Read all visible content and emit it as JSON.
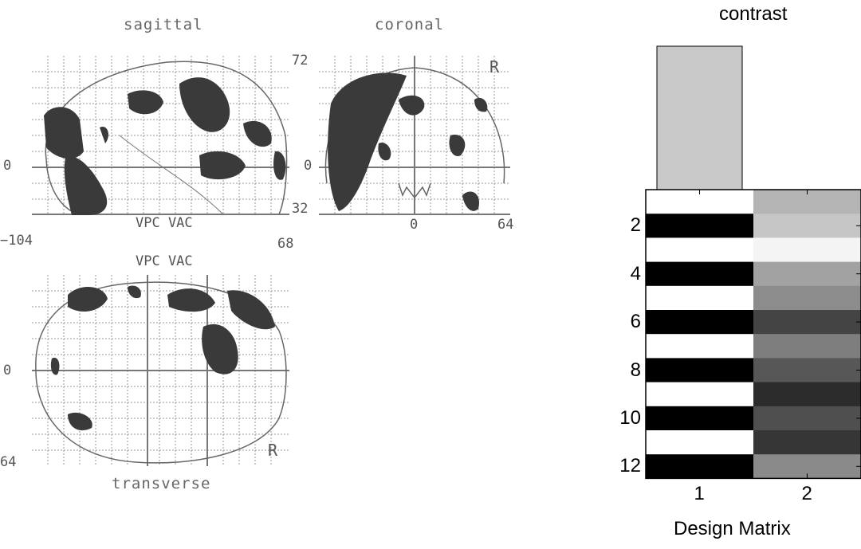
{
  "views": {
    "sagittal": {
      "title": "sagittal",
      "tick_left": "0",
      "tick_top_right": "72",
      "tick_bottom_right": "32",
      "bottom_caption": "VPC VAC",
      "x_min": "−104",
      "x_max": "68"
    },
    "coronal": {
      "title": "coronal",
      "tick_bottom": "0",
      "tick_right": "64",
      "right_marker": "R"
    },
    "transverse": {
      "title": "transverse",
      "top_caption": "VPC VAC",
      "tick_left": "0",
      "tick_bottom_left": "64",
      "right_marker": "R"
    }
  },
  "contrast": {
    "label": "contrast",
    "weights": [
      1,
      0
    ],
    "bar_color": "#c8c8c8"
  },
  "design_matrix": {
    "title": "Design Matrix",
    "row_ticks": [
      "2",
      "4",
      "6",
      "8",
      "10",
      "12"
    ],
    "col_ticks": [
      "1",
      "2"
    ],
    "rows": 12,
    "column1_values": [
      1,
      0,
      1,
      0,
      1,
      0,
      1,
      0,
      1,
      0,
      1,
      0
    ],
    "column2_gray": [
      "#b4b4b4",
      "#c6c6c6",
      "#f4f4f4",
      "#a2a2a2",
      "#8c8c8c",
      "#444444",
      "#7e7e7e",
      "#575757",
      "#2c2c2c",
      "#4f4f4f",
      "#363636",
      "#8a8a8a"
    ]
  }
}
